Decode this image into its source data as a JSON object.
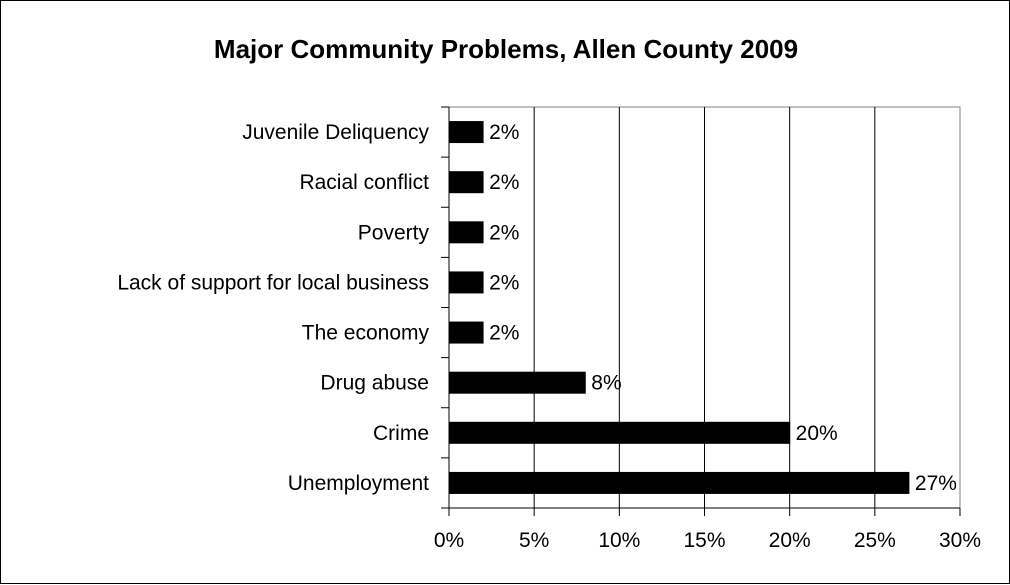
{
  "chart_data": {
    "type": "bar",
    "orientation": "horizontal",
    "title": "Major Community Problems, Allen County 2009",
    "xlabel": "",
    "ylabel": "",
    "categories": [
      "Juvenile Deliquency",
      "Racial conflict",
      "Poverty",
      "Lack of support for local business",
      "The economy",
      "Drug abuse",
      "Crime",
      "Unemployment"
    ],
    "values": [
      2,
      2,
      2,
      2,
      2,
      8,
      20,
      27
    ],
    "data_labels": [
      "2%",
      "2%",
      "2%",
      "2%",
      "2%",
      "8%",
      "20%",
      "27%"
    ],
    "xlim": [
      0,
      30
    ],
    "x_ticks": [
      0,
      5,
      10,
      15,
      20,
      25,
      30
    ],
    "x_tick_labels": [
      "0%",
      "5%",
      "10%",
      "15%",
      "20%",
      "25%",
      "30%"
    ],
    "grid": true,
    "legend": "none",
    "bar_color": "#000000"
  }
}
